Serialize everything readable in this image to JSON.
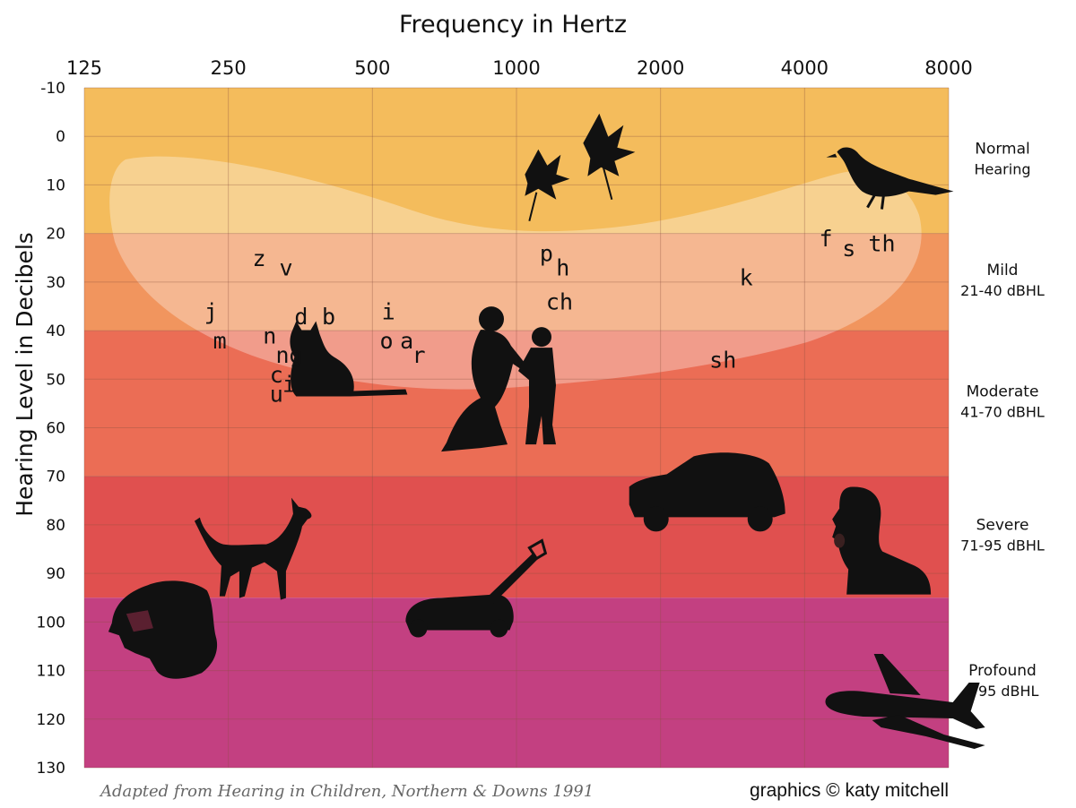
{
  "chart_data": {
    "type": "audiogram",
    "title": "Frequency in Hertz",
    "xlabel": "Frequency in Hertz",
    "ylabel": "Hearing Level in Decibels",
    "x_scale": "log2",
    "x_ticks": [
      125,
      250,
      500,
      1000,
      2000,
      4000,
      8000
    ],
    "x_tick_labels": [
      "125",
      "250",
      "500",
      "1000",
      "2000",
      "4000",
      "8000"
    ],
    "y_ticks": [
      -10,
      0,
      10,
      20,
      30,
      40,
      50,
      60,
      70,
      80,
      90,
      100,
      110,
      120,
      130
    ],
    "y_tick_labels": [
      "-10",
      "0",
      "10",
      "20",
      "30",
      "40",
      "50",
      "60",
      "70",
      "80",
      "90",
      "100",
      "110",
      "120",
      "130"
    ],
    "ylim": [
      -10,
      130
    ],
    "y_inverted": true,
    "grid": true,
    "bands": [
      {
        "label": "Normal",
        "label2": "Hearing",
        "from": -10,
        "to": 20,
        "color": "#F4BC5C"
      },
      {
        "label": "Mild",
        "label2": "21-40 dBHL",
        "from": 20,
        "to": 40,
        "color": "#F1955E"
      },
      {
        "label": "Moderate",
        "label2": "41-70 dBHL",
        "from": 40,
        "to": 70,
        "color": "#EB6D55"
      },
      {
        "label": "Severe",
        "label2": "71-95 dBHL",
        "from": 70,
        "to": 95,
        "color": "#E0504F"
      },
      {
        "label": "Profound",
        "label2": ">95 dBHL",
        "from": 95,
        "to": 130,
        "color": "#C34081"
      }
    ],
    "sounds": [
      {
        "text": "z",
        "hz": 290,
        "db": 25
      },
      {
        "text": "v",
        "hz": 330,
        "db": 27
      },
      {
        "text": "j",
        "hz": 230,
        "db": 36
      },
      {
        "text": "m",
        "hz": 240,
        "db": 42
      },
      {
        "text": "d",
        "hz": 355,
        "db": 37
      },
      {
        "text": "b",
        "hz": 405,
        "db": 37
      },
      {
        "text": "n",
        "hz": 305,
        "db": 41
      },
      {
        "text": "ng",
        "hz": 335,
        "db": 45
      },
      {
        "text": "c",
        "hz": 315,
        "db": 49
      },
      {
        "text": "i",
        "hz": 335,
        "db": 51
      },
      {
        "text": "u",
        "hz": 315,
        "db": 53
      },
      {
        "text": "i",
        "hz": 540,
        "db": 36
      },
      {
        "text": "o",
        "hz": 535,
        "db": 42
      },
      {
        "text": "a",
        "hz": 590,
        "db": 42
      },
      {
        "text": "r",
        "hz": 625,
        "db": 45
      },
      {
        "text": "p",
        "hz": 1155,
        "db": 24
      },
      {
        "text": "h",
        "hz": 1250,
        "db": 27
      },
      {
        "text": "ch",
        "hz": 1230,
        "db": 34
      },
      {
        "text": "k",
        "hz": 3020,
        "db": 29
      },
      {
        "text": "sh",
        "hz": 2700,
        "db": 46
      },
      {
        "text": "f",
        "hz": 4430,
        "db": 21
      },
      {
        "text": "s",
        "hz": 4950,
        "db": 23
      },
      {
        "text": "th",
        "hz": 5800,
        "db": 22
      }
    ],
    "icons": [
      {
        "name": "leaves-icon",
        "hz": 1320,
        "db": 6
      },
      {
        "name": "bird-icon",
        "hz": 5800,
        "db": 8
      },
      {
        "name": "cat-icon",
        "hz": 430,
        "db": 48
      },
      {
        "name": "mother-child-icon",
        "hz": 1000,
        "db": 52
      },
      {
        "name": "car-icon",
        "hz": 2450,
        "db": 74
      },
      {
        "name": "dog-icon",
        "hz": 300,
        "db": 84
      },
      {
        "name": "screaming-person-icon",
        "hz": 5200,
        "db": 84
      },
      {
        "name": "lion-icon",
        "hz": 185,
        "db": 102
      },
      {
        "name": "lawn-mower-icon",
        "hz": 760,
        "db": 98
      },
      {
        "name": "airplane-icon",
        "hz": 6300,
        "db": 118
      }
    ]
  },
  "credits": {
    "source": "Adapted from Hearing in Children, Northern & Downs 1991",
    "graphics": "graphics © katy mitchell"
  }
}
